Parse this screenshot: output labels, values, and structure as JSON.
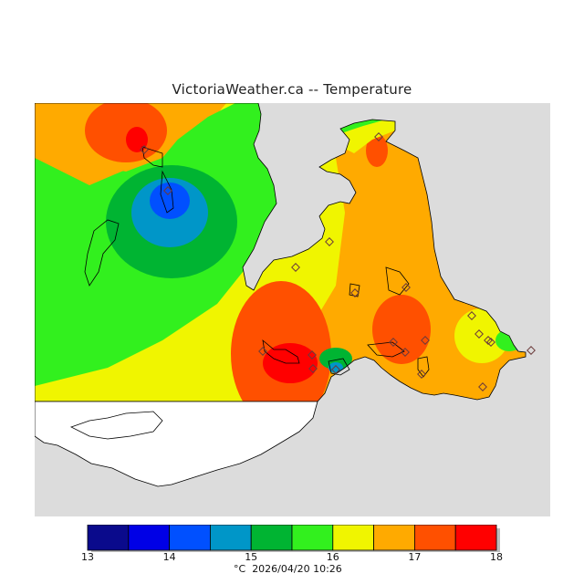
{
  "title": "VictoriaWeather.ca -- Temperature",
  "legend": {
    "ticks": [
      "13",
      "14",
      "15",
      "16",
      "17",
      "18"
    ],
    "bands": [
      {
        "from": 13.0,
        "to": 13.5,
        "color": "#0a0a8c"
      },
      {
        "from": 13.5,
        "to": 14.0,
        "color": "#0000e6"
      },
      {
        "from": 14.0,
        "to": 14.5,
        "color": "#0050ff"
      },
      {
        "from": 14.5,
        "to": 15.0,
        "color": "#0096c8"
      },
      {
        "from": 15.0,
        "to": 15.5,
        "color": "#00b432"
      },
      {
        "from": 15.5,
        "to": 16.0,
        "color": "#32f01e"
      },
      {
        "from": 16.0,
        "to": 16.5,
        "color": "#f0f500"
      },
      {
        "from": 16.5,
        "to": 17.0,
        "color": "#ffaa00"
      },
      {
        "from": 17.0,
        "to": 17.5,
        "color": "#ff5000"
      },
      {
        "from": 17.5,
        "to": 18.0,
        "color": "#ff0000"
      }
    ],
    "unit": "°C",
    "timestamp": "2026/04/20 10:26"
  },
  "colors": {
    "ocean": "#dcdcdc",
    "unmapped_land": "#ffffff",
    "coastline": "#000000",
    "station_marker": "#6b3a3a"
  },
  "station_count": 21
}
